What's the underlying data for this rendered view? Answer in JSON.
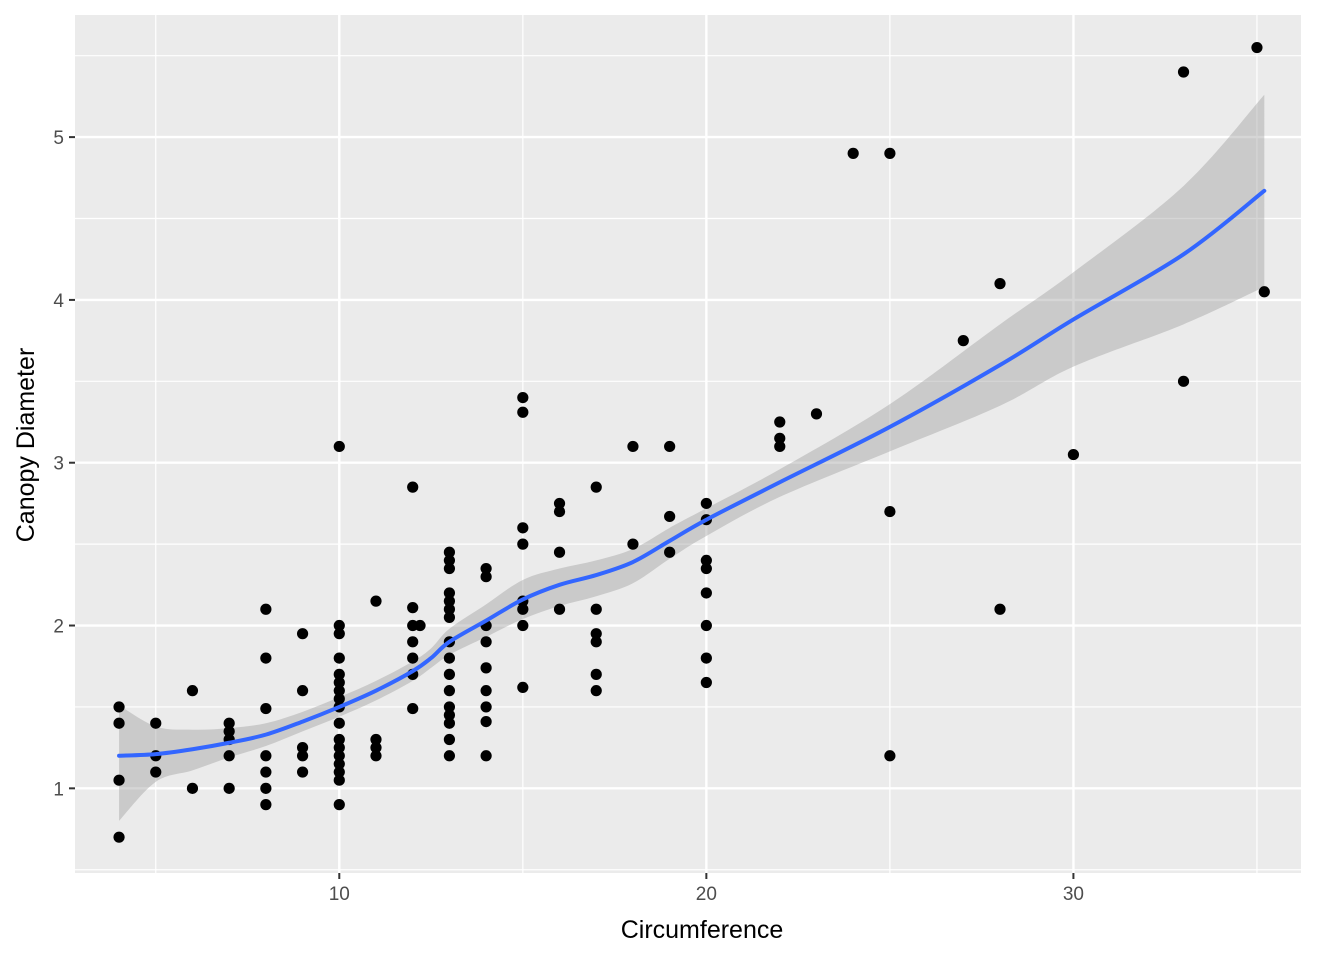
{
  "chart_data": {
    "type": "scatter",
    "title": "",
    "xlabel": "Circumference",
    "ylabel": "Canopy Diameter",
    "xlim": [
      2.8,
      36.2
    ],
    "ylim": [
      0.48,
      5.75
    ],
    "x_ticks": [
      10,
      20,
      30
    ],
    "x_tick_labels": [
      "10",
      "20",
      "30"
    ],
    "y_ticks": [
      1,
      2,
      3,
      4,
      5
    ],
    "y_tick_labels": [
      "1",
      "2",
      "3",
      "4",
      "5"
    ],
    "grid": true,
    "legend": "none",
    "colors": {
      "panel": "#ebebeb",
      "grid": "#ffffff",
      "points": "#000000",
      "smooth_line": "#3366ff",
      "ribbon": "#999999"
    },
    "points": [
      [
        4,
        1.5
      ],
      [
        4,
        1.4
      ],
      [
        4,
        1.05
      ],
      [
        4,
        0.7
      ],
      [
        5,
        1.4
      ],
      [
        5,
        1.2
      ],
      [
        5,
        1.1
      ],
      [
        6,
        1.6
      ],
      [
        6,
        1.0
      ],
      [
        7,
        1.4
      ],
      [
        7,
        1.35
      ],
      [
        7,
        1.3
      ],
      [
        7,
        1.2
      ],
      [
        7,
        1.0
      ],
      [
        8,
        2.1
      ],
      [
        8,
        1.8
      ],
      [
        8,
        1.49
      ],
      [
        8,
        1.2
      ],
      [
        8,
        1.1
      ],
      [
        8,
        1.0
      ],
      [
        8,
        0.9
      ],
      [
        9,
        1.95
      ],
      [
        9,
        1.6
      ],
      [
        9,
        1.25
      ],
      [
        9,
        1.2
      ],
      [
        9,
        1.1
      ],
      [
        10,
        3.1
      ],
      [
        10,
        2.0
      ],
      [
        10,
        1.95
      ],
      [
        10,
        1.8
      ],
      [
        10,
        1.7
      ],
      [
        10,
        1.65
      ],
      [
        10,
        1.6
      ],
      [
        10,
        1.55
      ],
      [
        10,
        1.5
      ],
      [
        10,
        1.4
      ],
      [
        10,
        1.3
      ],
      [
        10,
        1.25
      ],
      [
        10,
        1.2
      ],
      [
        10,
        1.15
      ],
      [
        10,
        1.1
      ],
      [
        10,
        1.05
      ],
      [
        10,
        0.9
      ],
      [
        11,
        2.15
      ],
      [
        11,
        1.3
      ],
      [
        11,
        1.25
      ],
      [
        11,
        1.2
      ],
      [
        12,
        2.85
      ],
      [
        12,
        2.11
      ],
      [
        12,
        2.0
      ],
      [
        12,
        1.9
      ],
      [
        12,
        1.8
      ],
      [
        12,
        1.7
      ],
      [
        12,
        1.49
      ],
      [
        12.2,
        2.0
      ],
      [
        13,
        2.45
      ],
      [
        13,
        2.4
      ],
      [
        13,
        2.35
      ],
      [
        13,
        2.2
      ],
      [
        13,
        2.15
      ],
      [
        13,
        2.1
      ],
      [
        13,
        2.05
      ],
      [
        13,
        1.9
      ],
      [
        13,
        1.8
      ],
      [
        13,
        1.7
      ],
      [
        13,
        1.6
      ],
      [
        13,
        1.5
      ],
      [
        13,
        1.45
      ],
      [
        13,
        1.4
      ],
      [
        13,
        1.3
      ],
      [
        13,
        1.2
      ],
      [
        14,
        2.35
      ],
      [
        14,
        2.3
      ],
      [
        14,
        2.0
      ],
      [
        14,
        1.9
      ],
      [
        14,
        1.74
      ],
      [
        14,
        1.6
      ],
      [
        14,
        1.5
      ],
      [
        14,
        1.41
      ],
      [
        14,
        1.2
      ],
      [
        15,
        3.4
      ],
      [
        15,
        3.31
      ],
      [
        15,
        2.6
      ],
      [
        15,
        2.5
      ],
      [
        15,
        2.15
      ],
      [
        15,
        2.1
      ],
      [
        15,
        2.0
      ],
      [
        15,
        1.62
      ],
      [
        16,
        2.75
      ],
      [
        16,
        2.7
      ],
      [
        16,
        2.45
      ],
      [
        16,
        2.1
      ],
      [
        17,
        2.85
      ],
      [
        17,
        2.1
      ],
      [
        17,
        1.95
      ],
      [
        17,
        1.9
      ],
      [
        17,
        1.7
      ],
      [
        17,
        1.6
      ],
      [
        18,
        3.1
      ],
      [
        18,
        2.5
      ],
      [
        19,
        3.1
      ],
      [
        19,
        2.67
      ],
      [
        19,
        2.45
      ],
      [
        20,
        2.75
      ],
      [
        20,
        2.65
      ],
      [
        20,
        2.4
      ],
      [
        20,
        2.35
      ],
      [
        20,
        2.2
      ],
      [
        20,
        2.0
      ],
      [
        20,
        1.8
      ],
      [
        20,
        1.65
      ],
      [
        22,
        3.25
      ],
      [
        22,
        3.15
      ],
      [
        22,
        3.1
      ],
      [
        23,
        3.3
      ],
      [
        24,
        4.9
      ],
      [
        25,
        4.9
      ],
      [
        25,
        2.7
      ],
      [
        25,
        1.2
      ],
      [
        27,
        3.75
      ],
      [
        28,
        4.1
      ],
      [
        28,
        2.1
      ],
      [
        30,
        3.05
      ],
      [
        33,
        5.4
      ],
      [
        33,
        3.5
      ],
      [
        35,
        5.55
      ],
      [
        35.2,
        4.05
      ]
    ],
    "smooth": {
      "x": [
        4,
        5,
        6,
        7,
        8,
        9,
        10,
        11,
        12,
        12.5,
        13,
        14,
        15,
        16,
        17,
        18,
        19,
        20,
        22,
        25,
        28,
        30,
        33,
        35.2
      ],
      "y": [
        1.2,
        1.21,
        1.24,
        1.28,
        1.33,
        1.41,
        1.5,
        1.6,
        1.72,
        1.8,
        1.9,
        2.03,
        2.16,
        2.25,
        2.31,
        2.39,
        2.52,
        2.65,
        2.88,
        3.22,
        3.6,
        3.88,
        4.28,
        4.67
      ],
      "upper": [
        1.51,
        1.38,
        1.36,
        1.37,
        1.4,
        1.47,
        1.56,
        1.66,
        1.78,
        1.86,
        1.98,
        2.13,
        2.28,
        2.35,
        2.4,
        2.47,
        2.6,
        2.72,
        2.96,
        3.36,
        3.85,
        4.17,
        4.7,
        5.26
      ],
      "lower": [
        0.8,
        1.04,
        1.11,
        1.19,
        1.26,
        1.35,
        1.44,
        1.54,
        1.66,
        1.74,
        1.82,
        1.93,
        2.04,
        2.12,
        2.18,
        2.26,
        2.41,
        2.55,
        2.79,
        3.07,
        3.35,
        3.59,
        3.85,
        4.08
      ]
    }
  }
}
